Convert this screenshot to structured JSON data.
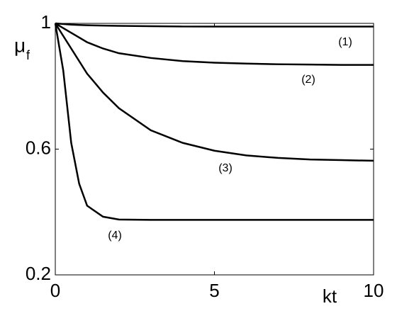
{
  "chart_data": {
    "type": "line",
    "ylabel": "μ",
    "ylabel_subscript": "f",
    "xlabel": "kt",
    "x": [
      0,
      0.25,
      0.5,
      0.75,
      1,
      1.5,
      2,
      3,
      4,
      5,
      6,
      7,
      8,
      9,
      10
    ],
    "series": [
      {
        "color": "#000000",
        "values": [
          1,
          0.998,
          0.996,
          0.995,
          0.994,
          0.993,
          0.992,
          0.991,
          0.99,
          0.99,
          0.99,
          0.99,
          0.99,
          0.99,
          0.99
        ]
      },
      {
        "color": "#000000",
        "values": [
          1,
          0.985,
          0.97,
          0.955,
          0.94,
          0.92,
          0.905,
          0.89,
          0.88,
          0.875,
          0.872,
          0.87,
          0.869,
          0.868,
          0.868
        ]
      },
      {
        "color": "#000000",
        "values": [
          1,
          0.96,
          0.92,
          0.88,
          0.84,
          0.78,
          0.73,
          0.66,
          0.62,
          0.595,
          0.58,
          0.572,
          0.567,
          0.565,
          0.563
        ]
      },
      {
        "color": "#000000",
        "values": [
          1,
          0.85,
          0.62,
          0.49,
          0.42,
          0.385,
          0.376,
          0.375,
          0.375,
          0.375,
          0.375,
          0.375,
          0.375,
          0.375,
          0.375
        ]
      }
    ],
    "annotations": [
      "(1)",
      "(2)",
      "(3)",
      "(4)"
    ],
    "xlim": [
      0,
      10
    ],
    "xticks": [
      0,
      5,
      10
    ],
    "ylim": [
      0.2,
      1
    ],
    "yticks": [
      0.2,
      0.6,
      1
    ],
    "grid": false
  }
}
